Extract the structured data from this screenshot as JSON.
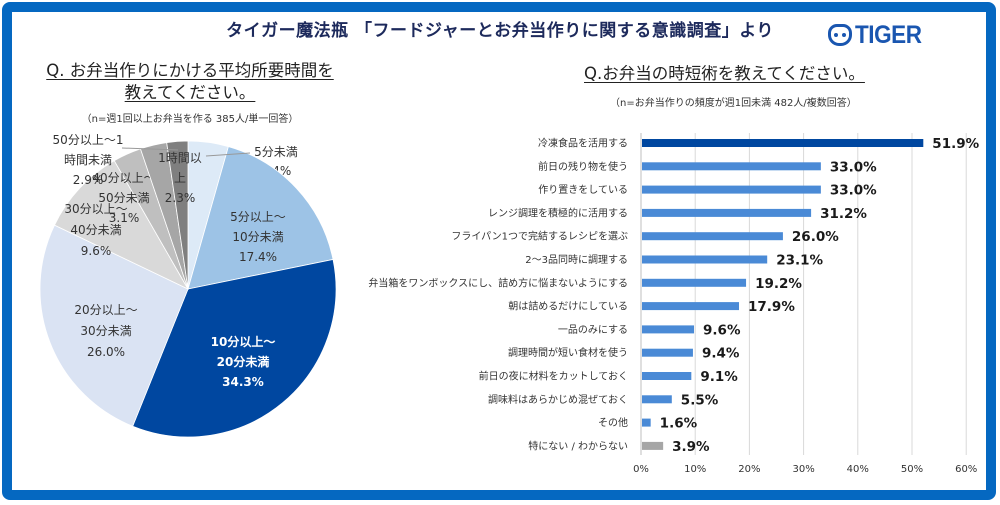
{
  "header": {
    "title": "タイガー魔法瓶 「フードジャーとお弁当作りに関する意識調査」より",
    "logo_text": "TIGER",
    "logo_icon": "tiger-face-icon"
  },
  "colors": {
    "frame": "#0568c1",
    "title": "#1d2a5c",
    "logo": "#1a56b0",
    "bar_highlight": "#0047a0",
    "bar_default": "#4a8ad6",
    "bar_other": "#a6a6a6",
    "grid": "#d9d9d9"
  },
  "chart_data": [
    {
      "type": "pie",
      "title": "Q. お弁当作りにかける平均所要時間を教えてください。",
      "title_lines": [
        "Q. お弁当作りにかける平均所要時間を",
        "教えてください。"
      ],
      "subtitle": "（n=週1回以上お弁当を作る 385人/単一回答）",
      "start": "12 o'clock",
      "direction": "clockwise",
      "slices": [
        {
          "label": "5分未満",
          "label_lines": [
            "5分未満",
            "4.4%"
          ],
          "value": 4.4,
          "color": "#ddeaf7"
        },
        {
          "label": "5分以上〜10分未満",
          "label_lines": [
            "5分以上〜",
            "10分未満",
            "17.4%"
          ],
          "value": 17.4,
          "color": "#9dc3e6"
        },
        {
          "label": "10分以上〜20分未満",
          "label_lines": [
            "10分以上〜",
            "20分未満",
            "34.3%"
          ],
          "value": 34.3,
          "color": "#0047a0"
        },
        {
          "label": "20分以上〜30分未満",
          "label_lines": [
            "20分以上〜",
            "30分未満",
            "26.0%"
          ],
          "value": 26.0,
          "color": "#dae3f3"
        },
        {
          "label": "30分以上〜40分未満",
          "label_lines": [
            "30分以上〜",
            "40分未満",
            "9.6%"
          ],
          "value": 9.6,
          "color": "#d9d9d9"
        },
        {
          "label": "40分以上〜50分未満",
          "label_lines": [
            "40分以上〜",
            "50分未満",
            "3.1%"
          ],
          "value": 3.1,
          "color": "#bfbfbf"
        },
        {
          "label": "50分以上〜1時間未満",
          "label_lines": [
            "50分以上〜1",
            "時間未満",
            "2.9%"
          ],
          "value": 2.9,
          "color": "#a6a6a6"
        },
        {
          "label": "1時間以上",
          "label_lines": [
            "1時間以",
            "上",
            "2.3%"
          ],
          "value": 2.3,
          "color": "#7f7f7f"
        }
      ]
    },
    {
      "type": "bar",
      "orientation": "horizontal",
      "title": "Q.お弁当の時短術を教えてください。",
      "subtitle": "（n=お弁当作りの頻度が週1回未満 482人/複数回答）",
      "categories": [
        "冷凍食品を活用する",
        "前日の残り物を使う",
        "作り置きをしている",
        "レンジ調理を積極的に活用する",
        "フライパン1つで完結するレシピを選ぶ",
        "2〜3品同時に調理する",
        "弁当箱をワンボックスにし、詰め方に悩まないようにする",
        "朝は詰めるだけにしている",
        "一品のみにする",
        "調理時間が短い食材を使う",
        "前日の夜に材料をカットしておく",
        "調味料はあらかじめ混ぜておく",
        "その他",
        "特にない / わからない"
      ],
      "values": [
        51.9,
        33.0,
        33.0,
        31.2,
        26.0,
        23.1,
        19.2,
        17.9,
        9.6,
        9.4,
        9.1,
        5.5,
        1.6,
        3.9
      ],
      "value_labels": [
        "51.9%",
        "33.0%",
        "33.0%",
        "31.2%",
        "26.0%",
        "23.1%",
        "19.2%",
        "17.9%",
        "9.6%",
        "9.4%",
        "9.1%",
        "5.5%",
        "1.6%",
        "3.9%"
      ],
      "bar_styles": [
        "highlight",
        "default",
        "default",
        "default",
        "default",
        "default",
        "default",
        "default",
        "default",
        "default",
        "default",
        "default",
        "default",
        "other"
      ],
      "xlim": [
        0,
        60
      ],
      "xticks": [
        0,
        10,
        20,
        30,
        40,
        50,
        60
      ],
      "xtick_labels": [
        "0%",
        "10%",
        "20%",
        "30%",
        "40%",
        "50%",
        "60%"
      ],
      "grid": true,
      "xlabel": "",
      "ylabel": ""
    }
  ]
}
